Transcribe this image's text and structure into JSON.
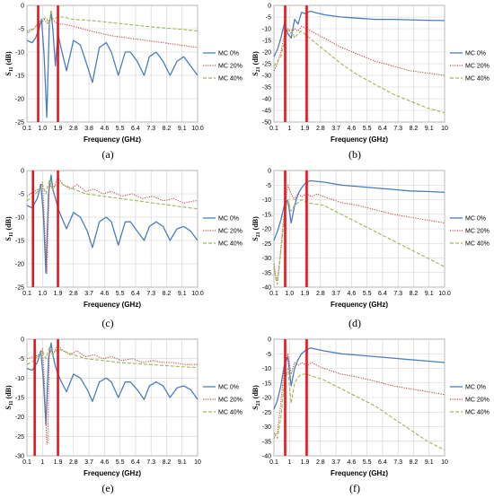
{
  "colors": {
    "mc0": "#4a7ebb",
    "mc20": "#be4b48",
    "mc40": "#98b954",
    "band_marker": "#e8141b",
    "grid": "#d0d0d0"
  },
  "chart_data": [
    {
      "id": "a",
      "caption": "(a)",
      "type": "line",
      "ylabel_main": "S",
      "ylabel_sub": "11",
      "ylabel_unit": "(dB)",
      "xlabel": "Frequency (GHz)",
      "xticks": [
        "0.1",
        "1.0",
        "1.9",
        "2.8",
        "3.8",
        "4.6",
        "5.5",
        "6.4",
        "7.3",
        "8.2",
        "9.1",
        "10.0"
      ],
      "ylim": [
        -25,
        0
      ],
      "ystep": 5,
      "band_markers": [
        0.75,
        1.9
      ],
      "series": [
        {
          "name": "MC 0%",
          "style": "solid",
          "x": [
            0.1,
            0.4,
            0.6,
            0.8,
            0.95,
            1.1,
            1.25,
            1.4,
            1.5,
            1.6,
            1.75,
            1.9,
            2.1,
            2.4,
            2.8,
            3.2,
            3.6,
            3.9,
            4.3,
            4.7,
            5.0,
            5.4,
            5.8,
            6.1,
            6.5,
            6.9,
            7.2,
            7.6,
            8.0,
            8.4,
            8.8,
            9.2,
            9.6,
            10.0
          ],
          "y": [
            -7.5,
            -8,
            -7,
            -5,
            -3,
            -11,
            -24,
            -4,
            -1.5,
            -5,
            -13,
            -6,
            -9.5,
            -14,
            -7.5,
            -8.5,
            -13,
            -16.5,
            -9,
            -8,
            -10,
            -15,
            -10,
            -10,
            -12,
            -15,
            -11,
            -10,
            -12,
            -15,
            -12,
            -11,
            -13,
            -15
          ]
        },
        {
          "name": "MC 20%",
          "style": "dotted",
          "x": [
            0.1,
            0.5,
            0.8,
            1.0,
            1.1,
            1.3,
            1.5,
            1.7,
            1.9,
            2.2,
            2.8,
            3.8,
            5.0,
            6.0,
            7.0,
            8.0,
            9.0,
            10.0
          ],
          "y": [
            -5.5,
            -5,
            -4,
            -3.5,
            -3,
            -4,
            -2.5,
            -3.5,
            -4,
            -4,
            -4.5,
            -5.5,
            -6.5,
            -7,
            -7.5,
            -8,
            -8.5,
            -9
          ]
        },
        {
          "name": "MC 40%",
          "style": "dashed",
          "x": [
            0.1,
            0.5,
            0.8,
            1.0,
            1.2,
            1.4,
            1.5,
            1.6,
            1.9,
            2.2,
            2.8,
            4,
            5,
            6,
            7,
            8,
            9,
            10
          ],
          "y": [
            -6,
            -5,
            -3.5,
            -3,
            -2.5,
            -4,
            -1,
            -3,
            -2.5,
            -2.5,
            -3,
            -3.3,
            -3.7,
            -4.1,
            -4.5,
            -4.8,
            -5.1,
            -5.5
          ]
        }
      ]
    },
    {
      "id": "b",
      "caption": "(b)",
      "type": "line",
      "ylabel_main": "S",
      "ylabel_sub": "21",
      "ylabel_unit": "(dB)",
      "xlabel": "Frequency (GHz)",
      "xticks": [
        "0.1",
        "1",
        "1.9",
        "2.8",
        "3.7",
        "4.6",
        "5.5",
        "6.4",
        "7.3",
        "8.2",
        "9.1",
        "10"
      ],
      "ylim": [
        -50,
        0
      ],
      "ystep": 5,
      "band_markers": [
        0.75,
        2.0
      ],
      "series": [
        {
          "name": "MC 0%",
          "style": "solid",
          "x": [
            0.1,
            0.3,
            0.5,
            0.7,
            0.9,
            1.1,
            1.3,
            1.5,
            1.7,
            1.9,
            2.2,
            3,
            4,
            5,
            6,
            7,
            8,
            9,
            10
          ],
          "y": [
            -22,
            -19,
            -14,
            -8,
            -12,
            -14,
            -6,
            -8,
            -3,
            -3.5,
            -2.5,
            -4,
            -5,
            -5.5,
            -6,
            -6,
            -6.2,
            -6.4,
            -6.5
          ]
        },
        {
          "name": "MC 20%",
          "style": "dotted",
          "x": [
            0.1,
            0.3,
            0.5,
            0.7,
            0.9,
            1.1,
            1.3,
            1.5,
            1.7,
            2.0,
            3,
            4,
            5,
            6,
            7,
            8,
            9,
            10
          ],
          "y": [
            -28,
            -25,
            -20,
            -13,
            -10,
            -12,
            -10,
            -11,
            -9,
            -10,
            -14,
            -18,
            -21,
            -24,
            -26,
            -28,
            -29,
            -30
          ]
        },
        {
          "name": "MC 40%",
          "style": "dashed",
          "x": [
            0.1,
            0.3,
            0.5,
            0.7,
            0.9,
            1.1,
            1.3,
            1.5,
            1.7,
            2.0,
            3,
            4,
            5,
            6,
            7,
            8,
            9,
            10
          ],
          "y": [
            -26,
            -24,
            -22,
            -16,
            -11,
            -10,
            -14,
            -12,
            -11,
            -13,
            -19,
            -25,
            -30,
            -34,
            -38,
            -41,
            -44,
            -46
          ]
        }
      ]
    },
    {
      "id": "c",
      "caption": "(c)",
      "type": "line",
      "ylabel_main": "S",
      "ylabel_sub": "11",
      "ylabel_unit": "(dB)",
      "xlabel": "Frequency (GHz)",
      "xticks": [
        "0.1",
        "1.0",
        "1.9",
        "2.8",
        "3.7",
        "4.6",
        "5.5",
        "6.4",
        "7.3",
        "8.2",
        "9.1",
        "10.0"
      ],
      "ylim": [
        -25,
        0
      ],
      "ystep": 5,
      "band_markers": [
        0.45,
        1.9
      ],
      "series": [
        {
          "name": "MC 0%",
          "style": "solid",
          "x": [
            0.1,
            0.4,
            0.7,
            0.9,
            1.05,
            1.2,
            1.35,
            1.5,
            1.6,
            1.75,
            1.9,
            2.1,
            2.4,
            2.8,
            3.2,
            3.6,
            3.9,
            4.3,
            4.7,
            5.0,
            5.4,
            5.8,
            6.1,
            6.5,
            6.9,
            7.2,
            7.6,
            8.0,
            8.4,
            8.8,
            9.2,
            9.6,
            10.0
          ],
          "y": [
            -7.5,
            -8,
            -6,
            -3,
            -9,
            -22,
            -5,
            -1,
            -4,
            -6,
            -8,
            -10,
            -12.5,
            -9,
            -10,
            -13,
            -16.5,
            -11,
            -10,
            -11,
            -16,
            -11,
            -11,
            -13,
            -15,
            -12,
            -11,
            -12,
            -15,
            -12.5,
            -12,
            -13,
            -15
          ]
        },
        {
          "name": "MC 20%",
          "style": "dotted",
          "x": [
            0.1,
            0.5,
            0.8,
            1.0,
            1.1,
            1.25,
            1.4,
            1.6,
            1.9,
            2.2,
            2.6,
            3.0,
            3.5,
            4.0,
            4.5,
            5.0,
            5.6,
            6.2,
            6.8,
            7.4,
            8.0,
            8.6,
            9.2,
            9.8,
            10.0
          ],
          "y": [
            -5.5,
            -4.5,
            -4,
            -2.5,
            -10,
            -22,
            -3,
            -4,
            -1.5,
            -3,
            -4,
            -3,
            -4.5,
            -4,
            -5,
            -4.5,
            -5.5,
            -5,
            -6,
            -5.5,
            -6.5,
            -6,
            -7,
            -6.5,
            -6.5
          ]
        },
        {
          "name": "MC 40%",
          "style": "dashed",
          "x": [
            0.1,
            0.5,
            0.8,
            1.0,
            1.2,
            1.4,
            1.6,
            1.9,
            2.2,
            2.8,
            3.5,
            4.5,
            5.5,
            6.5,
            7.5,
            8.5,
            9.5,
            10.0
          ],
          "y": [
            -6.5,
            -5.5,
            -4,
            -3,
            -5,
            -2,
            -4,
            -2.5,
            -3,
            -4,
            -5,
            -5.5,
            -6,
            -6.5,
            -7,
            -7.5,
            -8,
            -8.2
          ]
        }
      ]
    },
    {
      "id": "d",
      "caption": "(d)",
      "type": "line",
      "ylabel_main": "S",
      "ylabel_sub": "21",
      "ylabel_unit": "(dB)",
      "xlabel": "Frequency (GHz)",
      "xticks": [
        "0.1",
        "1.0",
        "1.9",
        "2.8",
        "3.7",
        "4.6",
        "5.5",
        "6.4",
        "7.3",
        "8.2",
        "9.1",
        "10.0"
      ],
      "ylim": [
        -40,
        0
      ],
      "ystep": 5,
      "band_markers": [
        0.75,
        2.0
      ],
      "series": [
        {
          "name": "MC 0%",
          "style": "solid",
          "x": [
            0.1,
            0.3,
            0.5,
            0.7,
            0.9,
            1.1,
            1.3,
            1.5,
            1.7,
            1.9,
            2.2,
            3,
            4,
            5,
            6,
            7,
            8,
            9,
            10
          ],
          "y": [
            -24,
            -21,
            -17,
            -12,
            -10,
            -18,
            -12,
            -8,
            -6,
            -4.5,
            -3.5,
            -4,
            -5,
            -5.5,
            -6,
            -6.5,
            -7,
            -7.2,
            -7.5
          ]
        },
        {
          "name": "MC 20%",
          "style": "dotted",
          "x": [
            0.1,
            0.2,
            0.3,
            0.45,
            0.6,
            0.75,
            0.9,
            1.1,
            1.3,
            1.5,
            1.7,
            2.0,
            2.3,
            2.6,
            3.0,
            3.5,
            4,
            5,
            6,
            7,
            8,
            9,
            10
          ],
          "y": [
            -32,
            -36,
            -38,
            -30,
            -20,
            -12,
            -5,
            -8,
            -10,
            -8,
            -9,
            -8,
            -9,
            -8,
            -9,
            -10,
            -11,
            -12,
            -13.5,
            -15,
            -16,
            -17,
            -18
          ]
        },
        {
          "name": "MC 40%",
          "style": "dashed",
          "x": [
            0.1,
            0.2,
            0.3,
            0.45,
            0.6,
            0.75,
            0.9,
            1.1,
            1.3,
            1.5,
            1.7,
            2.0,
            3,
            4,
            5,
            6,
            7,
            8,
            9,
            10
          ],
          "y": [
            -33,
            -37,
            -39,
            -31,
            -22,
            -14,
            -10,
            -14,
            -12,
            -11,
            -10,
            -11,
            -12,
            -15,
            -18,
            -21,
            -24,
            -27,
            -30,
            -33
          ]
        }
      ]
    },
    {
      "id": "e",
      "caption": "(e)",
      "type": "line",
      "ylabel_main": "S",
      "ylabel_sub": "11",
      "ylabel_unit": "(dB)",
      "xlabel": "Frequency (GHz)",
      "xticks": [
        "0.1",
        "1",
        "1.9",
        "2.8",
        "3.7",
        "4.6",
        "5.5",
        "6.4",
        "7.3",
        "8.2",
        "9.1",
        "10"
      ],
      "ylim": [
        -30,
        0
      ],
      "ystep": 5,
      "band_markers": [
        0.55,
        1.9
      ],
      "series": [
        {
          "name": "MC 0%",
          "style": "solid",
          "x": [
            0.1,
            0.4,
            0.7,
            0.9,
            1.05,
            1.2,
            1.35,
            1.5,
            1.6,
            1.75,
            1.9,
            2.1,
            2.4,
            2.8,
            3.2,
            3.6,
            3.9,
            4.3,
            4.7,
            5.0,
            5.4,
            5.8,
            6.1,
            6.5,
            6.9,
            7.2,
            7.6,
            8.0,
            8.4,
            8.8,
            9.2,
            9.6,
            10.0
          ],
          "y": [
            -7.5,
            -8,
            -6,
            -3,
            -10,
            -22,
            -5,
            -1,
            -4,
            -7,
            -9,
            -11,
            -13.5,
            -9,
            -10,
            -13,
            -16,
            -11,
            -10,
            -11,
            -15,
            -11,
            -11,
            -13,
            -15.5,
            -12,
            -11,
            -12,
            -15,
            -12.5,
            -12,
            -13,
            -15.5
          ]
        },
        {
          "name": "MC 20%",
          "style": "dotted",
          "x": [
            0.1,
            0.5,
            0.8,
            1.0,
            1.1,
            1.25,
            1.3,
            1.4,
            1.6,
            1.9,
            2.2,
            2.6,
            3.0,
            3.5,
            4.0,
            4.5,
            5.0,
            5.6,
            6.2,
            6.8,
            7.4,
            8.0,
            8.6,
            9.2,
            9.8,
            10.0
          ],
          "y": [
            -5,
            -4.5,
            -4,
            -2.5,
            -10,
            -27,
            -27,
            -3,
            -4,
            -1.5,
            -3,
            -4,
            -3,
            -4.5,
            -4,
            -5,
            -4.5,
            -5.5,
            -5,
            -6,
            -5.5,
            -6,
            -6,
            -6.5,
            -6.5,
            -6.5
          ]
        },
        {
          "name": "MC 40%",
          "style": "dashed",
          "x": [
            0.1,
            0.5,
            0.8,
            1.0,
            1.2,
            1.4,
            1.6,
            1.9,
            2.2,
            2.8,
            3.5,
            4.5,
            5.5,
            6.5,
            7.5,
            8.5,
            9.5,
            10.0
          ],
          "y": [
            -6.5,
            -5.5,
            -4,
            -3,
            -5,
            -2,
            -4,
            -2.5,
            -3,
            -4,
            -5,
            -5.5,
            -6,
            -6.3,
            -6.6,
            -6.9,
            -7.2,
            -7.3
          ]
        }
      ]
    },
    {
      "id": "f",
      "caption": "(f)",
      "type": "line",
      "ylabel_main": "S",
      "ylabel_sub": "21",
      "ylabel_unit": "(dB)",
      "xlabel": "Frequency (GHz)",
      "xticks": [
        "0.1",
        "1",
        "1.9",
        "2.8",
        "3.7",
        "4.6",
        "5.5",
        "6.4",
        "7.3",
        "8.2",
        "9.1",
        "10"
      ],
      "ylim": [
        -40,
        0
      ],
      "ystep": 5,
      "band_markers": [
        0.75,
        2.0
      ],
      "series": [
        {
          "name": "MC 0%",
          "style": "solid",
          "x": [
            0.1,
            0.3,
            0.5,
            0.7,
            0.9,
            1.1,
            1.3,
            1.5,
            1.7,
            1.9,
            2.2,
            3,
            4,
            5,
            6,
            7,
            8,
            9,
            10
          ],
          "y": [
            -24,
            -21,
            -16,
            -9,
            -6,
            -16,
            -10,
            -7,
            -5,
            -4,
            -3,
            -4,
            -5,
            -5.5,
            -6,
            -6.5,
            -7,
            -7.5,
            -8
          ]
        },
        {
          "name": "MC 20%",
          "style": "dotted",
          "x": [
            0.1,
            0.3,
            0.5,
            0.7,
            0.9,
            1.1,
            1.3,
            1.5,
            1.7,
            2.0,
            2.3,
            2.6,
            3.0,
            3.5,
            4,
            5,
            6,
            7,
            8,
            9,
            10
          ],
          "y": [
            -34,
            -32,
            -22,
            -10,
            -5,
            -12,
            -8,
            -9,
            -8,
            -9,
            -8,
            -9,
            -10,
            -11,
            -12,
            -13,
            -14.5,
            -16,
            -17,
            -18,
            -19
          ]
        },
        {
          "name": "MC 40%",
          "style": "dashed",
          "x": [
            0.1,
            0.3,
            0.5,
            0.7,
            0.9,
            1.1,
            1.3,
            1.5,
            1.7,
            2.0,
            3,
            4,
            5,
            6,
            7,
            8,
            9,
            10
          ],
          "y": [
            -32,
            -34,
            -27,
            -15,
            -10,
            -22,
            -15,
            -13,
            -12,
            -12,
            -14,
            -17,
            -20,
            -23,
            -27,
            -31,
            -35,
            -38
          ]
        }
      ]
    }
  ]
}
